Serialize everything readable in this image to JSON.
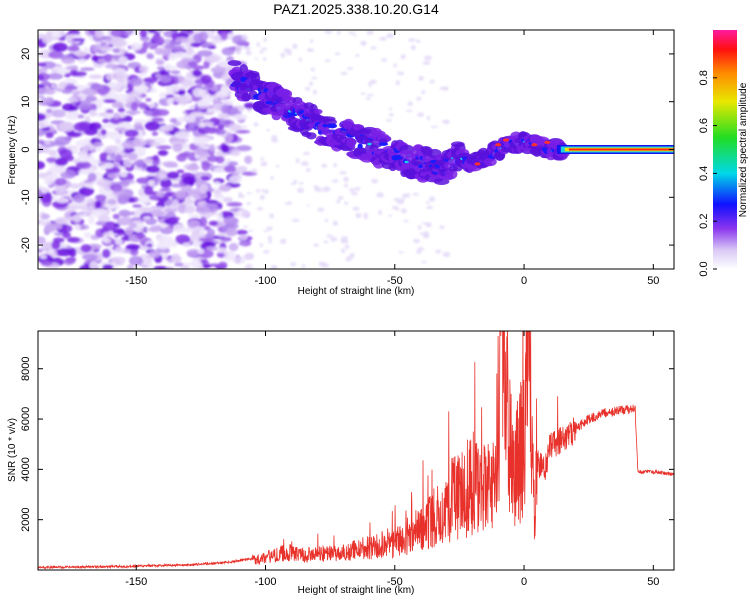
{
  "title": "PAZ1.2025.338.10.20.G14",
  "chart_data": [
    {
      "type": "heatmap",
      "title": "PAZ1.2025.338.10.20.G14",
      "xlabel": "Height of straight line (km)",
      "ylabel": "Frequency (Hz)",
      "xlim": [
        -188,
        58
      ],
      "ylim": [
        -25,
        25
      ],
      "xticks": [
        -150,
        -100,
        -50,
        0,
        50
      ],
      "yticks": [
        -20,
        -10,
        0,
        10,
        20
      ],
      "ridge": {
        "x": [
          -112,
          -100,
          -90,
          -80,
          -70,
          -60,
          -50,
          -40,
          -30,
          -25,
          -20,
          -15,
          -10,
          -5,
          0,
          5,
          10,
          15,
          25,
          35,
          45,
          58
        ],
        "y": [
          15,
          11,
          8,
          5,
          3,
          1,
          -1,
          -3,
          -4,
          -1,
          -3,
          -2,
          0,
          1,
          2,
          1,
          0,
          0,
          0,
          0,
          0,
          0
        ],
        "peak_amplitude_note": "strongest (red) energy along 0 Hz from about 15 km to 58 km"
      },
      "colorbar": {
        "label": "Normalized spectral amplitude",
        "range": [
          0.0,
          1.0
        ],
        "ticks": [
          "0.0",
          "0.2",
          "0.4",
          "0.6",
          "0.8"
        ],
        "tick_values": [
          0.0,
          0.2,
          0.4,
          0.6,
          0.8
        ]
      }
    },
    {
      "type": "line",
      "xlabel": "Height of straight line (km)",
      "ylabel": "SNR (10 * v/v)",
      "xlim": [
        -188,
        58
      ],
      "ylim": [
        0,
        9500
      ],
      "xticks": [
        -150,
        -100,
        -50,
        0,
        50
      ],
      "yticks": [
        2000,
        4000,
        6000,
        8000
      ],
      "color": "#e8312a",
      "series": [
        {
          "name": "SNR",
          "x": [
            -188,
            -170,
            -150,
            -130,
            -115,
            -105,
            -100,
            -95,
            -90,
            -85,
            -80,
            -75,
            -70,
            -65,
            -60,
            -55,
            -50,
            -45,
            -40,
            -35,
            -30,
            -25,
            -20,
            -15,
            -10,
            -9,
            -5,
            0,
            2,
            4,
            5,
            8,
            10,
            15,
            20,
            25,
            30,
            35,
            40,
            43,
            44,
            50,
            58
          ],
          "values": [
            100,
            120,
            150,
            200,
            300,
            450,
            550,
            700,
            800,
            650,
            700,
            750,
            750,
            900,
            800,
            900,
            1000,
            1300,
            1600,
            2000,
            2400,
            2500,
            3000,
            2700,
            2800,
            9300,
            3500,
            4300,
            7500,
            1600,
            4300,
            4000,
            4900,
            5200,
            5600,
            6000,
            6200,
            6300,
            6400,
            6400,
            3900,
            3900,
            3800
          ]
        }
      ],
      "spikes": [
        {
          "x": -10,
          "y": 9300
        },
        {
          "x": 1,
          "y": 7500
        },
        {
          "x": 13,
          "y": 6900
        },
        {
          "x": -5,
          "y": 7000
        }
      ]
    }
  ],
  "colors": {
    "snr_line": "#e8312a",
    "axis": "#000000"
  }
}
